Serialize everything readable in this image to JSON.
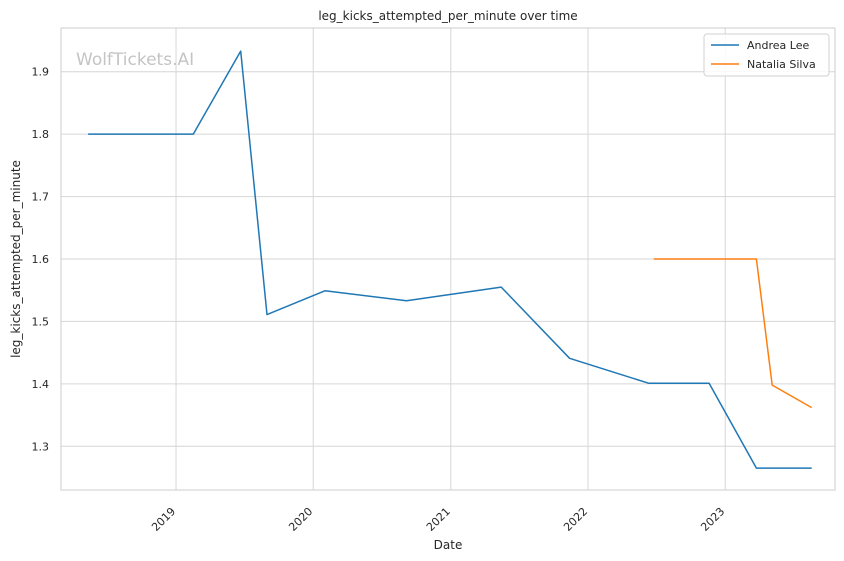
{
  "chart_data": {
    "type": "line",
    "title": "leg_kicks_attempted_per_minute over time",
    "xlabel": "Date",
    "ylabel": "leg_kicks_attempted_per_minute",
    "watermark": "WolfTickets.AI",
    "grid": true,
    "legend_position": "top-right",
    "xlim": [
      "2018-03-01",
      "2023-10-20"
    ],
    "ylim": [
      1.23,
      1.97
    ],
    "x_ticks": [
      "2019-01-01",
      "2020-01-01",
      "2021-01-01",
      "2022-01-01",
      "2023-01-01"
    ],
    "x_tick_labels": [
      "2019",
      "2020",
      "2021",
      "2022",
      "2023"
    ],
    "y_ticks": [
      1.3,
      1.4,
      1.5,
      1.6,
      1.7,
      1.8,
      1.9
    ],
    "y_tick_labels": [
      "1.3",
      "1.4",
      "1.5",
      "1.6",
      "1.7",
      "1.8",
      "1.9"
    ],
    "series": [
      {
        "name": "Andrea Lee",
        "color": "#1f77b4",
        "points": [
          {
            "x": "2018-05-12",
            "y": 1.8
          },
          {
            "x": "2019-02-16",
            "y": 1.8
          },
          {
            "x": "2019-06-22",
            "y": 1.933
          },
          {
            "x": "2019-08-31",
            "y": 1.511
          },
          {
            "x": "2020-02-01",
            "y": 1.549
          },
          {
            "x": "2020-09-05",
            "y": 1.533
          },
          {
            "x": "2021-05-15",
            "y": 1.555
          },
          {
            "x": "2021-11-13",
            "y": 1.441
          },
          {
            "x": "2022-06-11",
            "y": 1.401
          },
          {
            "x": "2022-11-19",
            "y": 1.401
          },
          {
            "x": "2023-03-25",
            "y": 1.265
          },
          {
            "x": "2023-08-19",
            "y": 1.265
          }
        ]
      },
      {
        "name": "Natalia Silva",
        "color": "#ff7f0e",
        "points": [
          {
            "x": "2022-06-25",
            "y": 1.6
          },
          {
            "x": "2023-03-25",
            "y": 1.6
          },
          {
            "x": "2023-05-06",
            "y": 1.398
          },
          {
            "x": "2023-08-19",
            "y": 1.362
          }
        ]
      }
    ]
  }
}
